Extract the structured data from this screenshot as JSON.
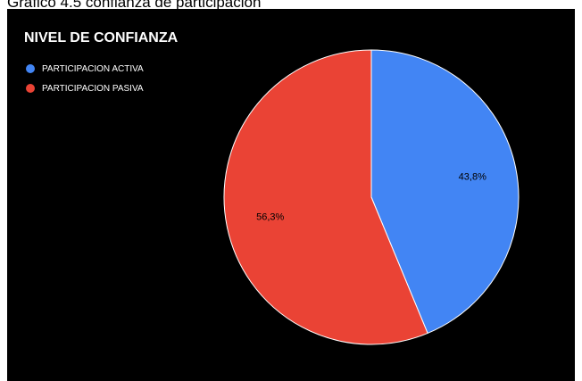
{
  "caption": "Gráfico 4.5 confianza de participación",
  "chart_data": {
    "type": "pie",
    "title": "NIVEL DE CONFIANZA",
    "legend_position": "top-left",
    "background": "#000000",
    "slices": [
      {
        "label": "PARTICIPACION ACTIVA",
        "value": 43.8,
        "display": "43,8%",
        "color": "#4285f4"
      },
      {
        "label": "PARTICIPACION PASIVA",
        "value": 56.3,
        "display": "56,3%",
        "color": "#ea4335"
      }
    ]
  }
}
